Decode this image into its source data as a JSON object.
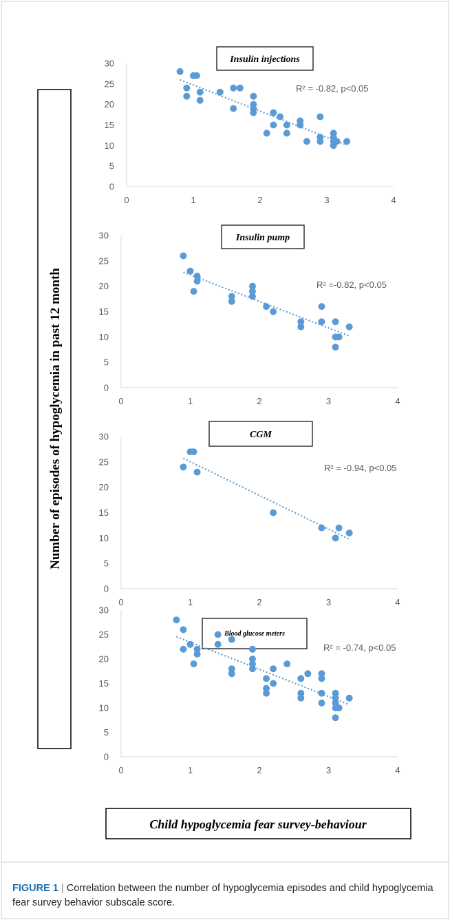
{
  "chart_data": [
    {
      "type": "scatter",
      "title": "Insulin injections",
      "annotation": "R² = -0.82, p<0.05",
      "xlim": [
        0,
        4
      ],
      "ylim": [
        0,
        30
      ],
      "xticks": [
        "0",
        "1",
        "2",
        "3",
        "4"
      ],
      "yticks": [
        "0",
        "5",
        "10",
        "15",
        "20",
        "25",
        "30"
      ],
      "trendline": "linear, dotted",
      "x": [
        0.8,
        0.9,
        0.9,
        1.0,
        1.05,
        1.1,
        1.1,
        1.4,
        1.6,
        1.6,
        1.7,
        1.9,
        1.9,
        1.9,
        1.9,
        2.1,
        2.2,
        2.2,
        2.3,
        2.4,
        2.4,
        2.6,
        2.6,
        2.7,
        2.9,
        2.9,
        2.9,
        3.1,
        3.1,
        3.1,
        3.1,
        3.15,
        3.3
      ],
      "y": [
        28,
        22,
        24,
        27,
        27,
        23,
        21,
        23,
        24,
        19,
        24,
        22,
        20,
        19,
        18,
        13,
        18,
        15,
        17,
        15,
        13,
        16,
        15,
        11,
        17,
        12,
        11,
        13,
        12,
        11,
        10,
        11,
        11
      ]
    },
    {
      "type": "scatter",
      "title": "Insulin pump",
      "annotation": "R² =-0.82, p<0.05",
      "xlim": [
        0,
        4
      ],
      "ylim": [
        0,
        30
      ],
      "xticks": [
        "0",
        "1",
        "2",
        "3",
        "4"
      ],
      "yticks": [
        "0",
        "5",
        "10",
        "15",
        "20",
        "25",
        "30"
      ],
      "trendline": "linear, dotted",
      "x": [
        0.9,
        1.0,
        1.05,
        1.1,
        1.1,
        1.6,
        1.6,
        1.9,
        1.9,
        1.9,
        2.1,
        2.2,
        2.6,
        2.6,
        2.9,
        2.9,
        3.1,
        3.1,
        3.15,
        3.1,
        3.3
      ],
      "y": [
        26,
        23,
        19,
        22,
        21,
        18,
        17,
        20,
        19,
        18,
        16,
        15,
        13,
        12,
        16,
        13,
        13,
        10,
        10,
        8,
        12
      ]
    },
    {
      "type": "scatter",
      "title": "CGM",
      "annotation": "R² = -0.94, p<0.05",
      "xlim": [
        0,
        4
      ],
      "ylim": [
        0,
        30
      ],
      "xticks": [
        "0",
        "1",
        "2",
        "3",
        "4"
      ],
      "yticks": [
        "0",
        "5",
        "10",
        "15",
        "20",
        "25",
        "30"
      ],
      "trendline": "linear, dotted",
      "x": [
        0.9,
        1.0,
        1.05,
        1.1,
        2.2,
        2.9,
        3.1,
        3.15,
        3.3
      ],
      "y": [
        24,
        27,
        27,
        23,
        15,
        12,
        10,
        12,
        11
      ]
    },
    {
      "type": "scatter",
      "title": "Blood glucose meters",
      "annotation": "R² = -0.74, p<0.05",
      "xlim": [
        0,
        4
      ],
      "ylim": [
        0,
        30
      ],
      "xticks": [
        "0",
        "1",
        "2",
        "3",
        "4"
      ],
      "yticks": [
        "0",
        "5",
        "10",
        "15",
        "20",
        "25",
        "30"
      ],
      "trendline": "linear, dotted",
      "x": [
        0.8,
        0.9,
        0.9,
        1.0,
        1.05,
        1.1,
        1.1,
        1.4,
        1.4,
        1.6,
        1.6,
        1.6,
        1.9,
        1.9,
        1.9,
        1.9,
        2.1,
        2.1,
        2.1,
        2.2,
        2.2,
        2.4,
        2.6,
        2.6,
        2.6,
        2.7,
        2.9,
        2.9,
        2.9,
        2.9,
        3.1,
        3.1,
        3.1,
        3.1,
        3.1,
        3.15,
        3.3
      ],
      "y": [
        28,
        26,
        22,
        23,
        19,
        22,
        21,
        25,
        23,
        24,
        18,
        17,
        22,
        20,
        19,
        18,
        16,
        14,
        13,
        18,
        15,
        19,
        16,
        13,
        12,
        17,
        17,
        16,
        13,
        11,
        13,
        12,
        11,
        10,
        8,
        10,
        12
      ]
    }
  ],
  "ylabel": "Number of episodes of hypoglycemia in past 12 month",
  "xlabel": "Child hypoglycemia fear survey-behaviour",
  "caption": {
    "label": "FIGURE 1",
    "separator": "|",
    "text": "Correlation between the number of hypoglycemia episodes and child hypoglycemia fear survey behavior subscale score."
  },
  "colors": {
    "marker": "#5b9bd5",
    "trend": "#5b9bd5",
    "axis": "#d9d9d9",
    "caption_label": "#1a6fb3"
  }
}
